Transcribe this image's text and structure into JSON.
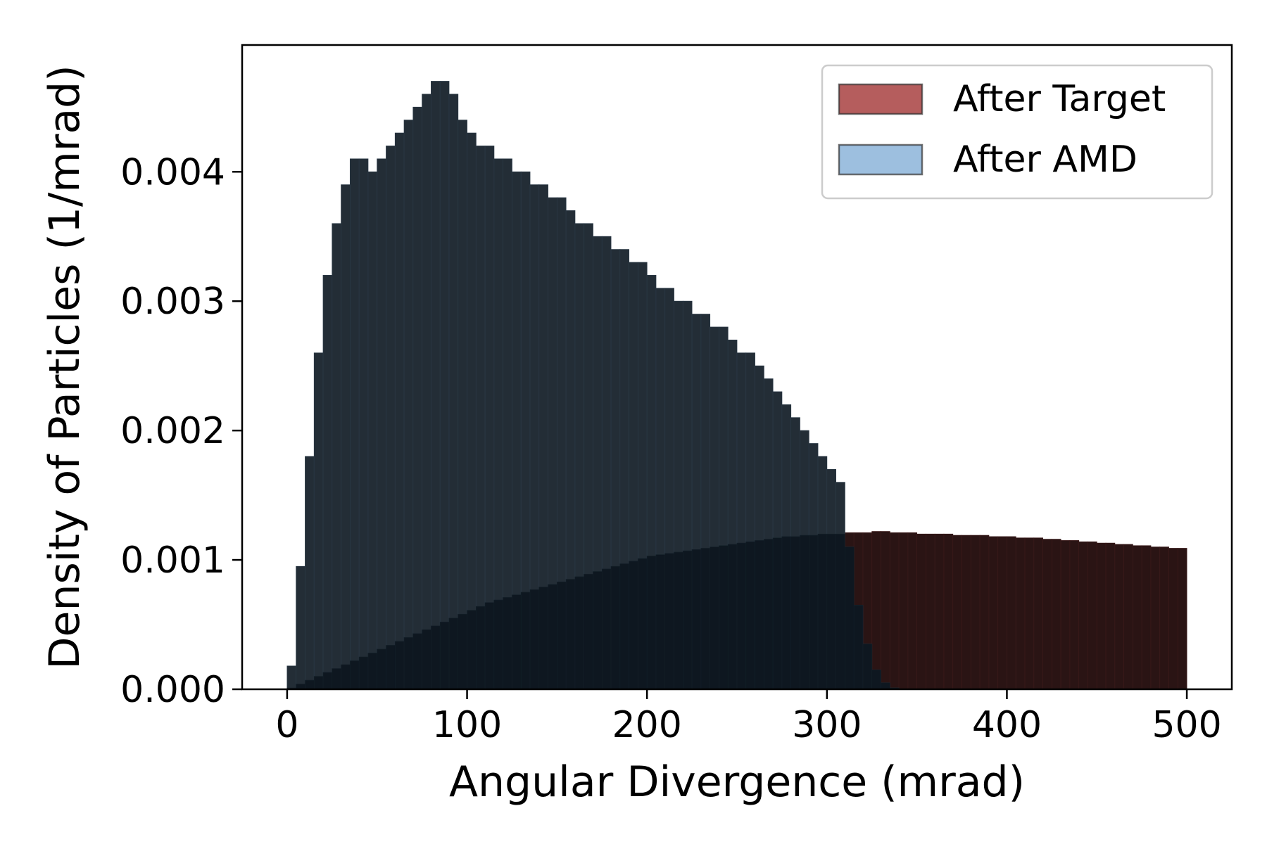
{
  "chart_data": {
    "type": "histogram",
    "title": "",
    "xlabel": "Angular Divergence (mrad)",
    "ylabel": "Density of Particles (1/mrad)",
    "xlim": [
      -25,
      525
    ],
    "ylim": [
      0,
      0.00498
    ],
    "xticks": [
      {
        "value": 0,
        "label": "0"
      },
      {
        "value": 100,
        "label": "100"
      },
      {
        "value": 200,
        "label": "200"
      },
      {
        "value": 300,
        "label": "300"
      },
      {
        "value": 400,
        "label": "400"
      },
      {
        "value": 500,
        "label": "500"
      }
    ],
    "yticks": [
      {
        "value": 0,
        "label": "0.000"
      },
      {
        "value": 0.001,
        "label": "0.001"
      },
      {
        "value": 0.002,
        "label": "0.002"
      },
      {
        "value": 0.003,
        "label": "0.003"
      },
      {
        "value": 0.004,
        "label": "0.004"
      }
    ],
    "grid": false,
    "legend_position": "top-right",
    "bin_width_mrad": 5,
    "series": [
      {
        "name": "After Target",
        "color": "#b55d5d",
        "bin_start": [
          0,
          5,
          10,
          15,
          20,
          25,
          30,
          35,
          40,
          45,
          50,
          55,
          60,
          65,
          70,
          75,
          80,
          85,
          90,
          95,
          100,
          105,
          110,
          115,
          120,
          125,
          130,
          135,
          140,
          145,
          150,
          155,
          160,
          165,
          170,
          175,
          180,
          185,
          190,
          195,
          200,
          205,
          210,
          215,
          220,
          225,
          230,
          235,
          240,
          245,
          250,
          255,
          260,
          265,
          270,
          275,
          280,
          285,
          290,
          295,
          300,
          305,
          310,
          315,
          320,
          325,
          330,
          335,
          340,
          345,
          350,
          355,
          360,
          365,
          370,
          375,
          380,
          385,
          390,
          395,
          400,
          405,
          410,
          415,
          420,
          425,
          430,
          435,
          440,
          445,
          450,
          455,
          460,
          465,
          470,
          475,
          480,
          485,
          490,
          495
        ],
        "density": [
          1e-05,
          4e-05,
          7e-05,
          0.0001,
          0.00013,
          0.00016,
          0.00019,
          0.00022,
          0.00025,
          0.00028,
          0.00031,
          0.00034,
          0.00037,
          0.0004,
          0.00043,
          0.00046,
          0.00049,
          0.00052,
          0.00055,
          0.00058,
          0.00061,
          0.00064,
          0.00067,
          0.00069,
          0.00071,
          0.00073,
          0.00075,
          0.00077,
          0.00079,
          0.00081,
          0.00083,
          0.00085,
          0.00087,
          0.00089,
          0.00091,
          0.00093,
          0.00095,
          0.00097,
          0.00099,
          0.00101,
          0.00103,
          0.00104,
          0.00105,
          0.00106,
          0.00107,
          0.00108,
          0.00109,
          0.0011,
          0.00111,
          0.00112,
          0.00113,
          0.00114,
          0.00115,
          0.00116,
          0.00117,
          0.00118,
          0.00118,
          0.00119,
          0.00119,
          0.0012,
          0.0012,
          0.0012,
          0.00121,
          0.00121,
          0.00121,
          0.00122,
          0.00122,
          0.00121,
          0.00121,
          0.00121,
          0.0012,
          0.0012,
          0.0012,
          0.0012,
          0.00119,
          0.00119,
          0.00119,
          0.00119,
          0.00118,
          0.00118,
          0.00118,
          0.00117,
          0.00117,
          0.00117,
          0.00116,
          0.00116,
          0.00115,
          0.00115,
          0.00114,
          0.00114,
          0.00113,
          0.00113,
          0.00112,
          0.00112,
          0.00111,
          0.00111,
          0.0011,
          0.0011,
          0.00109,
          0.00109
        ]
      },
      {
        "name": "After AMD",
        "color": "#9dbfdf",
        "bin_start": [
          0,
          5,
          10,
          15,
          20,
          25,
          30,
          35,
          40,
          45,
          50,
          55,
          60,
          65,
          70,
          75,
          80,
          85,
          90,
          95,
          100,
          105,
          110,
          115,
          120,
          125,
          130,
          135,
          140,
          145,
          150,
          155,
          160,
          165,
          170,
          175,
          180,
          185,
          190,
          195,
          200,
          205,
          210,
          215,
          220,
          225,
          230,
          235,
          240,
          245,
          250,
          255,
          260,
          265,
          270,
          275,
          280,
          285,
          290,
          295,
          300,
          305,
          310,
          315,
          320,
          325,
          330,
          335
        ],
        "density": [
          0.00018,
          0.00095,
          0.0018,
          0.0026,
          0.0032,
          0.0036,
          0.0039,
          0.0041,
          0.0041,
          0.004,
          0.0041,
          0.0042,
          0.0043,
          0.0044,
          0.0045,
          0.0046,
          0.0047,
          0.0047,
          0.0046,
          0.0044,
          0.0043,
          0.0042,
          0.0042,
          0.0041,
          0.0041,
          0.004,
          0.004,
          0.0039,
          0.0039,
          0.0038,
          0.0038,
          0.0037,
          0.0036,
          0.0036,
          0.0035,
          0.0035,
          0.0034,
          0.0034,
          0.0033,
          0.0033,
          0.0032,
          0.0031,
          0.0031,
          0.003,
          0.003,
          0.0029,
          0.0029,
          0.0028,
          0.0028,
          0.0027,
          0.0026,
          0.0026,
          0.0025,
          0.0024,
          0.0023,
          0.0022,
          0.0021,
          0.002,
          0.0019,
          0.0018,
          0.0017,
          0.0016,
          0.0011,
          0.00065,
          0.00035,
          0.00015,
          5e-05,
          1e-05
        ]
      }
    ]
  }
}
